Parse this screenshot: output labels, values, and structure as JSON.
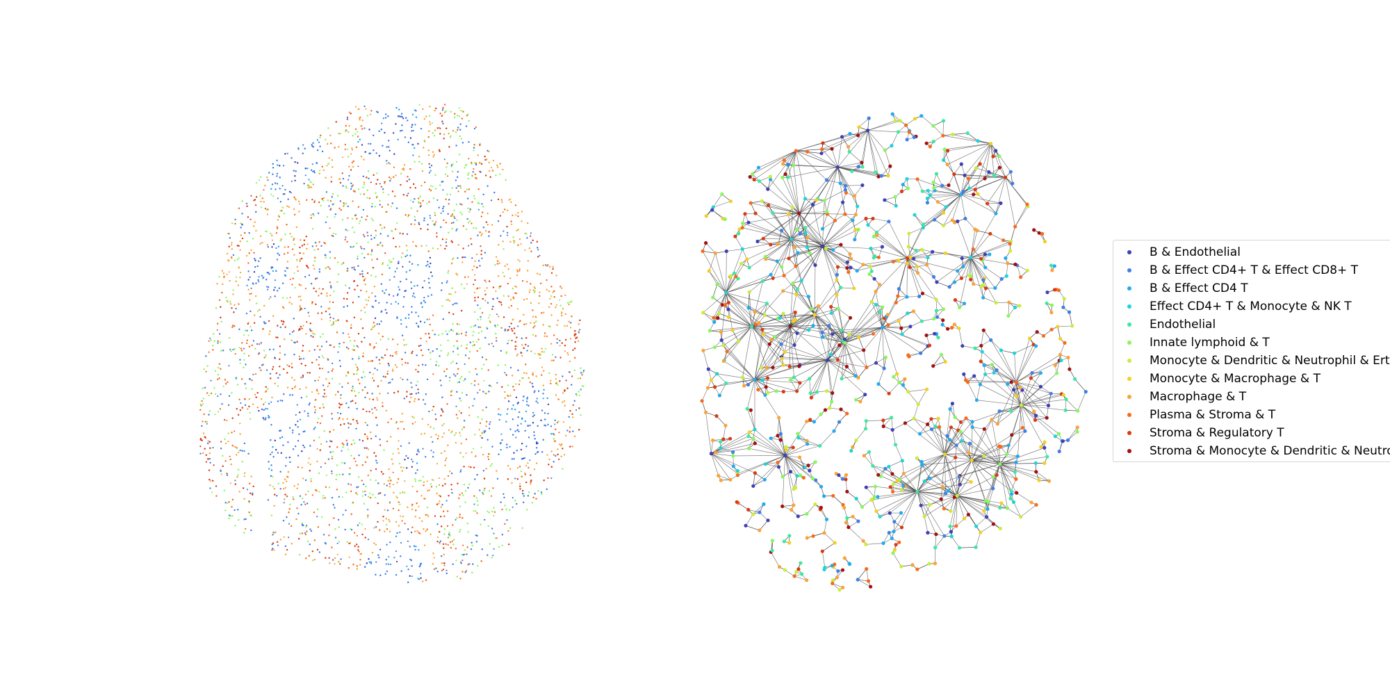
{
  "chart_data": [
    {
      "type": "scatter",
      "title": "",
      "xlabel": "",
      "ylabel": "",
      "axes": "off",
      "grid": false,
      "description_role": "spatial cell-type map, colored by cluster"
    },
    {
      "type": "network",
      "title": "",
      "xlabel": "",
      "ylabel": "",
      "axes": "off",
      "grid": false,
      "edge_color": "#444444",
      "legend_position": "right",
      "legend": [
        {
          "label": "B & Endothelial",
          "color": "#3f3fb5"
        },
        {
          "label": "B & Effect CD4+ T & Effect CD8+ T",
          "color": "#3f7fe6"
        },
        {
          "label": "B & Effect CD4 T",
          "color": "#22aaee"
        },
        {
          "label": "Effect CD4+ T & Monocyte & NK T",
          "color": "#1fd4d4"
        },
        {
          "label": "Endothelial",
          "color": "#3de8a0"
        },
        {
          "label": "Innate lymphoid & T",
          "color": "#86f75c"
        },
        {
          "label": "Monocyte & Dendritic & Neutrophil & Erth",
          "color": "#c8ee3a"
        },
        {
          "label": "Monocyte & Macrophage & T",
          "color": "#f2d022"
        },
        {
          "label": "Macrophage & T",
          "color": "#fba237"
        },
        {
          "label": "Plasma & Stroma & T",
          "color": "#f76a1c"
        },
        {
          "label": "Stroma & Regulatory T",
          "color": "#d93a12"
        },
        {
          "label": "Stroma & Monocyte & Dendritic & Neutrop",
          "color": "#a11010"
        }
      ]
    }
  ]
}
